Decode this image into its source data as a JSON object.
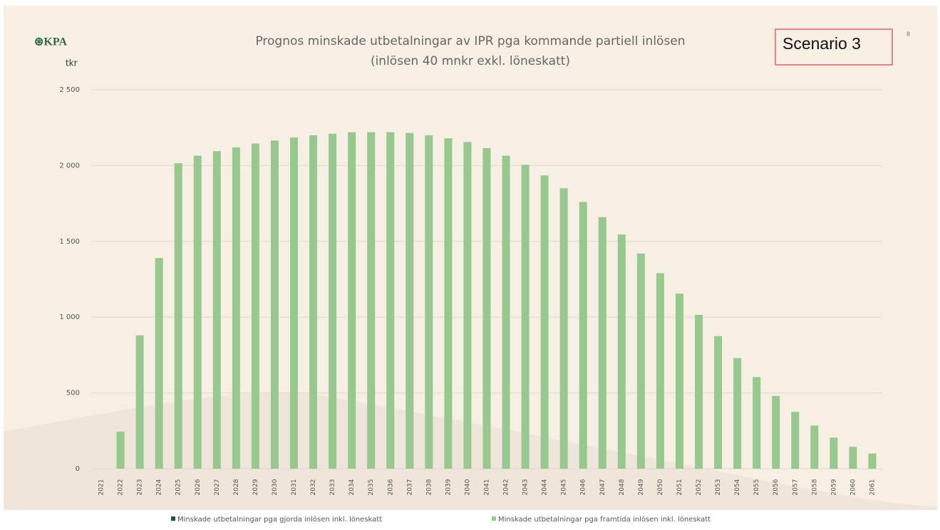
{
  "logo": "⊛KPA",
  "page_number": "8",
  "scenario_label": "Scenario 3",
  "chart_data": {
    "type": "bar",
    "title": [
      "Prognos minskade utbetalningar av IPR pga kommande partiell inlösen",
      "(inlösen 40 mnkr exkl. löneskatt)"
    ],
    "ylabel": "tkr",
    "categories": [
      "2021",
      "2022",
      "2023",
      "2024",
      "2025",
      "2026",
      "2027",
      "2028",
      "2029",
      "2030",
      "2031",
      "2032",
      "2033",
      "2034",
      "2035",
      "2036",
      "2037",
      "2038",
      "2039",
      "2040",
      "2041",
      "2042",
      "2043",
      "2044",
      "2045",
      "2046",
      "2047",
      "2048",
      "2049",
      "2050",
      "2051",
      "2052",
      "2053",
      "2054",
      "2055",
      "2056",
      "2057",
      "2058",
      "2059",
      "2060",
      "2061"
    ],
    "series": [
      {
        "name": "Minskade utbetalningar pga gjorda inlösen inkl. löneskatt",
        "color": "#1e5c32",
        "values": [
          0,
          0,
          0,
          0,
          0,
          0,
          0,
          0,
          0,
          0,
          0,
          0,
          0,
          0,
          0,
          0,
          0,
          0,
          0,
          0,
          0,
          0,
          0,
          0,
          0,
          0,
          0,
          0,
          0,
          0,
          0,
          0,
          0,
          0,
          0,
          0,
          0,
          0,
          0,
          0,
          0
        ]
      },
      {
        "name": "Minskade utbetalningar pga framtida inlösen inkl. löneskatt",
        "color": "#97c98e",
        "values": [
          0,
          245,
          880,
          1390,
          2015,
          2065,
          2095,
          2120,
          2145,
          2165,
          2185,
          2200,
          2210,
          2220,
          2220,
          2220,
          2215,
          2200,
          2180,
          2155,
          2115,
          2065,
          2005,
          1935,
          1850,
          1760,
          1660,
          1545,
          1420,
          1290,
          1155,
          1015,
          875,
          730,
          605,
          480,
          375,
          285,
          205,
          145,
          100
        ]
      }
    ],
    "stacked": true,
    "ylim": [
      0,
      2500
    ],
    "yticks": [
      0,
      500,
      {
        "value": 1000,
        "label": "1 000"
      },
      {
        "value": 1500,
        "label": "1 500"
      },
      {
        "value": 2000,
        "label": "2 000"
      },
      {
        "value": 2500,
        "label": "2 500"
      }
    ],
    "grid": true,
    "legend": "bottom"
  }
}
